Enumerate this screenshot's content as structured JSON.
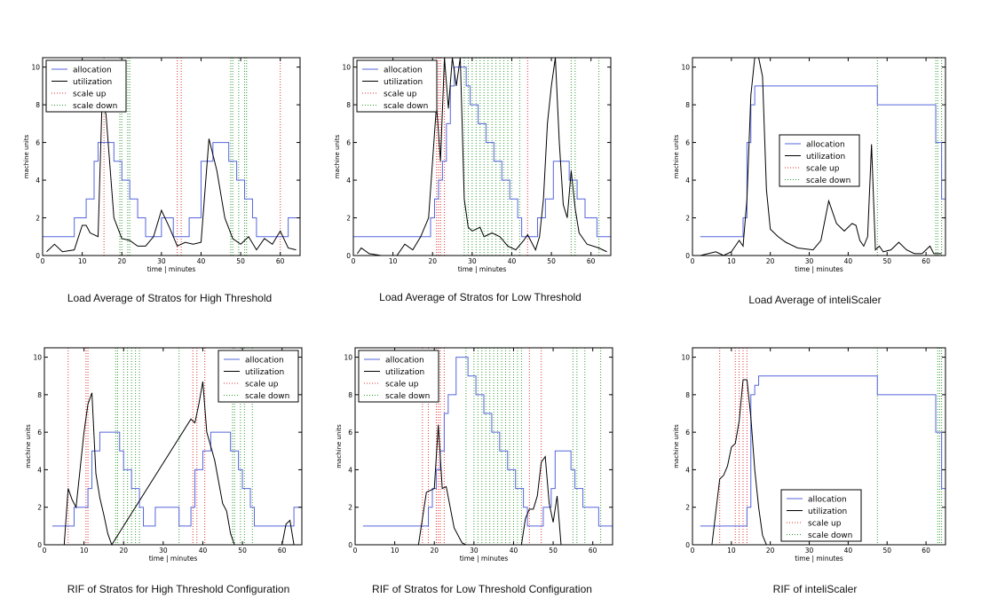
{
  "legend_labels": {
    "allocation": "allocation",
    "utilization": "utilization",
    "scale_up": "scale up",
    "scale_down": "scale down"
  },
  "colors": {
    "allocation": "#5566dd",
    "utilization": "#000000",
    "scale_up": "#e03030",
    "scale_down": "#2e9a2e",
    "frame": "#000000"
  },
  "chart_data": [
    {
      "type": "line",
      "title": "Load Average of Stratos for High Threshold",
      "xlabel": "time | minutes",
      "ylabel": "machine units",
      "xlim": [
        0,
        65
      ],
      "ylim": [
        0,
        10.5
      ],
      "xticks": [
        0,
        10,
        20,
        30,
        40,
        50,
        60
      ],
      "yticks": [
        0,
        2,
        4,
        6,
        8,
        10
      ],
      "legend_position": "top-left",
      "allocation": [
        [
          0,
          1
        ],
        [
          6,
          1
        ],
        [
          8,
          2
        ],
        [
          11,
          3
        ],
        [
          13,
          5
        ],
        [
          14,
          6
        ],
        [
          18,
          5
        ],
        [
          20,
          4
        ],
        [
          22,
          3
        ],
        [
          24,
          2
        ],
        [
          26,
          1
        ],
        [
          30,
          2
        ],
        [
          33,
          1
        ],
        [
          37,
          2
        ],
        [
          40,
          5
        ],
        [
          43,
          6
        ],
        [
          47,
          5
        ],
        [
          49,
          4
        ],
        [
          51,
          3
        ],
        [
          53,
          2
        ],
        [
          54,
          1
        ],
        [
          62,
          2
        ],
        [
          65,
          2
        ]
      ],
      "utilization": [
        [
          1,
          0.2
        ],
        [
          3,
          0.6
        ],
        [
          5,
          0.2
        ],
        [
          8,
          0.3
        ],
        [
          10,
          1.6
        ],
        [
          11,
          1.6
        ],
        [
          12,
          1.2
        ],
        [
          14,
          1.0
        ],
        [
          15,
          8.1
        ],
        [
          16,
          7.5
        ],
        [
          18,
          2.0
        ],
        [
          20,
          0.9
        ],
        [
          22,
          0.8
        ],
        [
          24,
          0.5
        ],
        [
          26,
          0.5
        ],
        [
          28,
          1.0
        ],
        [
          30,
          2.4
        ],
        [
          32,
          1.5
        ],
        [
          34,
          0.5
        ],
        [
          36,
          0.7
        ],
        [
          38,
          0.6
        ],
        [
          40,
          0.7
        ],
        [
          42,
          6.2
        ],
        [
          44,
          4.5
        ],
        [
          46,
          2.0
        ],
        [
          48,
          0.9
        ],
        [
          50,
          0.6
        ],
        [
          52,
          1.0
        ],
        [
          54,
          0.3
        ],
        [
          56,
          0.9
        ],
        [
          58,
          0.6
        ],
        [
          60,
          1.3
        ],
        [
          62,
          0.4
        ],
        [
          64,
          0.3
        ]
      ],
      "scale_up": [
        15.5,
        34,
        35,
        60
      ],
      "scale_down": [
        19.5,
        20,
        21.5,
        22,
        47.5,
        48,
        49.5,
        51,
        51.5
      ]
    },
    {
      "type": "line",
      "title": "Load Average of Stratos for Low Threshold",
      "xlabel": "time | minutes",
      "ylabel": "machine units",
      "xlim": [
        0,
        65
      ],
      "ylim": [
        0,
        10.5
      ],
      "xticks": [
        0,
        10,
        20,
        30,
        40,
        50,
        60
      ],
      "yticks": [
        0,
        2,
        4,
        6,
        8,
        10
      ],
      "legend_position": "top-left",
      "allocation": [
        [
          0,
          1
        ],
        [
          19,
          1
        ],
        [
          19.5,
          2
        ],
        [
          20.5,
          3
        ],
        [
          21.5,
          4
        ],
        [
          22.5,
          5
        ],
        [
          23.5,
          7
        ],
        [
          24.5,
          9
        ],
        [
          25.5,
          10
        ],
        [
          28.5,
          9
        ],
        [
          29.5,
          8
        ],
        [
          31.5,
          7
        ],
        [
          33.5,
          6
        ],
        [
          35.5,
          5
        ],
        [
          37.5,
          4
        ],
        [
          39.5,
          3
        ],
        [
          41.5,
          2
        ],
        [
          42.5,
          1
        ],
        [
          46.5,
          2
        ],
        [
          48.5,
          3
        ],
        [
          50.5,
          5
        ],
        [
          54.5,
          4
        ],
        [
          56.5,
          3
        ],
        [
          58.5,
          2
        ],
        [
          61.5,
          1
        ],
        [
          65,
          1
        ]
      ],
      "utilization": [
        [
          1,
          0.1
        ],
        [
          2,
          0.4
        ],
        [
          4,
          0.1
        ],
        [
          7,
          0
        ],
        [
          11,
          0
        ],
        [
          13,
          0.6
        ],
        [
          15,
          0.3
        ],
        [
          17,
          1.0
        ],
        [
          19,
          2.0
        ],
        [
          21,
          8.0
        ],
        [
          22,
          5.0
        ],
        [
          23,
          10.5
        ],
        [
          24,
          7.8
        ],
        [
          25,
          10.5
        ],
        [
          26,
          9.0
        ],
        [
          27,
          10.5
        ],
        [
          28,
          3.0
        ],
        [
          29,
          1.5
        ],
        [
          30,
          1.3
        ],
        [
          32,
          1.5
        ],
        [
          33,
          1.0
        ],
        [
          35,
          1.2
        ],
        [
          37,
          1.0
        ],
        [
          39,
          0.5
        ],
        [
          41,
          0.3
        ],
        [
          43,
          0.8
        ],
        [
          44,
          1.1
        ],
        [
          45,
          0.7
        ],
        [
          46,
          0.3
        ],
        [
          47,
          1.0
        ],
        [
          48,
          3.0
        ],
        [
          49,
          7.0
        ],
        [
          50,
          9.0
        ],
        [
          51,
          10.5
        ],
        [
          52,
          6.0
        ],
        [
          53,
          2.7
        ],
        [
          54,
          2.0
        ],
        [
          55,
          4.5
        ],
        [
          56,
          2.5
        ],
        [
          57,
          1.2
        ],
        [
          59,
          0.6
        ],
        [
          62,
          0.4
        ],
        [
          64,
          0.2
        ]
      ],
      "scale_up": [
        21,
        21.5,
        22,
        23,
        44
      ],
      "scale_down": [
        28,
        29,
        30,
        31,
        32,
        33,
        34,
        35,
        36,
        37,
        38,
        39,
        40,
        42,
        55,
        56,
        62
      ]
    },
    {
      "type": "line",
      "title": "Load Average of inteliScaler",
      "xlabel": "time | minutes",
      "ylabel": "machine units",
      "xlim": [
        0,
        65
      ],
      "ylim": [
        0,
        10.5
      ],
      "xticks": [
        0,
        10,
        20,
        30,
        40,
        50,
        60
      ],
      "yticks": [
        0,
        2,
        4,
        6,
        8,
        10
      ],
      "legend_position": "center",
      "allocation": [
        [
          2,
          1
        ],
        [
          12,
          1
        ],
        [
          13,
          2
        ],
        [
          14,
          6
        ],
        [
          15,
          8
        ],
        [
          16,
          9
        ],
        [
          47,
          9
        ],
        [
          47.5,
          8
        ],
        [
          62,
          8
        ],
        [
          62.5,
          6
        ],
        [
          64,
          3
        ],
        [
          65,
          3
        ]
      ],
      "utilization": [
        [
          2,
          0
        ],
        [
          6,
          0.2
        ],
        [
          8,
          0
        ],
        [
          10,
          0.2
        ],
        [
          12,
          0.8
        ],
        [
          13,
          0.5
        ],
        [
          14,
          3.0
        ],
        [
          15,
          8.5
        ],
        [
          16,
          10.5
        ],
        [
          17,
          10.5
        ],
        [
          18,
          9.5
        ],
        [
          19,
          3.5
        ],
        [
          20,
          1.4
        ],
        [
          22,
          1.0
        ],
        [
          24,
          0.7
        ],
        [
          27,
          0.4
        ],
        [
          31,
          0.3
        ],
        [
          33,
          0.8
        ],
        [
          35,
          2.9
        ],
        [
          37,
          1.7
        ],
        [
          39,
          1.3
        ],
        [
          41,
          1.7
        ],
        [
          42,
          1.6
        ],
        [
          43,
          0.8
        ],
        [
          44,
          0.5
        ],
        [
          45,
          1.0
        ],
        [
          46,
          5.9
        ],
        [
          47,
          0.3
        ],
        [
          48,
          0.5
        ],
        [
          49,
          0.2
        ],
        [
          51,
          0.3
        ],
        [
          53,
          0.7
        ],
        [
          55,
          0.3
        ],
        [
          57,
          0.1
        ],
        [
          59,
          0.1
        ],
        [
          61,
          0.5
        ],
        [
          62,
          0.1
        ],
        [
          64,
          0.1
        ]
      ],
      "scale_up": [],
      "scale_down": [
        47.5,
        62.5,
        63,
        64
      ]
    },
    {
      "type": "line",
      "title": "RIF of Stratos for High Threshold Configuration",
      "xlabel": "time | minutes",
      "ylabel": "machine units",
      "xlim": [
        0,
        65
      ],
      "ylim": [
        0,
        10.5
      ],
      "xticks": [
        0,
        10,
        20,
        30,
        40,
        50,
        60
      ],
      "yticks": [
        0,
        2,
        4,
        6,
        8,
        10
      ],
      "legend_position": "top-right",
      "allocation": [
        [
          2,
          1
        ],
        [
          7,
          1
        ],
        [
          7.5,
          2
        ],
        [
          11,
          3
        ],
        [
          12,
          5
        ],
        [
          14,
          6
        ],
        [
          19,
          5
        ],
        [
          20,
          4
        ],
        [
          22,
          3
        ],
        [
          24,
          2
        ],
        [
          25,
          1
        ],
        [
          28,
          2
        ],
        [
          34,
          1
        ],
        [
          37,
          2
        ],
        [
          38,
          4
        ],
        [
          40,
          5
        ],
        [
          42,
          6
        ],
        [
          47,
          5
        ],
        [
          49,
          4
        ],
        [
          50,
          3
        ],
        [
          52,
          2
        ],
        [
          53,
          1
        ],
        [
          63,
          2
        ],
        [
          65,
          2
        ]
      ],
      "utilization": [
        [
          5,
          0
        ],
        [
          6,
          3.0
        ],
        [
          7,
          2.4
        ],
        [
          8,
          2.0
        ],
        [
          10,
          6.0
        ],
        [
          11,
          7.5
        ],
        [
          12,
          8.1
        ],
        [
          13,
          3.8
        ],
        [
          14,
          2.5
        ],
        [
          15,
          1.6
        ],
        [
          16,
          0.6
        ],
        [
          17,
          0
        ],
        [
          37,
          6.7
        ],
        [
          38,
          6.5
        ],
        [
          39,
          7.5
        ],
        [
          40,
          8.7
        ],
        [
          41,
          6.0
        ],
        [
          43,
          4.5
        ],
        [
          45,
          2.2
        ],
        [
          46,
          1.8
        ],
        [
          47,
          0.6
        ],
        [
          48,
          0
        ],
        [
          60,
          0
        ],
        [
          61,
          1.1
        ],
        [
          62,
          1.3
        ],
        [
          63,
          0
        ]
      ],
      "scale_up": [
        6,
        10.5,
        11,
        37.5,
        38.5,
        40.5
      ],
      "scale_down": [
        18,
        18.5,
        20,
        21,
        22,
        23,
        24,
        34,
        47.5,
        48,
        49.5,
        50.5,
        52.5
      ]
    },
    {
      "type": "line",
      "title": "RIF of Stratos for Low Threshold Configuration",
      "xlabel": "time | minutes",
      "ylabel": "machine units",
      "xlim": [
        0,
        65
      ],
      "ylim": [
        0,
        10.5
      ],
      "xticks": [
        0,
        10,
        20,
        30,
        40,
        50,
        60
      ],
      "yticks": [
        0,
        2,
        4,
        6,
        8,
        10
      ],
      "legend_position": "top-left",
      "allocation": [
        [
          2,
          1
        ],
        [
          18,
          1
        ],
        [
          18.5,
          2
        ],
        [
          19.5,
          3
        ],
        [
          20.5,
          4
        ],
        [
          21.5,
          5
        ],
        [
          22.5,
          7
        ],
        [
          23.5,
          8
        ],
        [
          25.5,
          10
        ],
        [
          28.5,
          9
        ],
        [
          30.5,
          8
        ],
        [
          32.5,
          7
        ],
        [
          34.5,
          6
        ],
        [
          36.5,
          5
        ],
        [
          38.5,
          4
        ],
        [
          40.5,
          3
        ],
        [
          42.5,
          2
        ],
        [
          43.5,
          1
        ],
        [
          47.5,
          2
        ],
        [
          49.5,
          3
        ],
        [
          50.5,
          5
        ],
        [
          54.5,
          4
        ],
        [
          55.5,
          3
        ],
        [
          57.5,
          2
        ],
        [
          61.5,
          1
        ],
        [
          65,
          1
        ]
      ],
      "utilization": [
        [
          16,
          0
        ],
        [
          18,
          2.8
        ],
        [
          20,
          3.0
        ],
        [
          21,
          6.4
        ],
        [
          22,
          3.0
        ],
        [
          23,
          3.1
        ],
        [
          24,
          2.0
        ],
        [
          25,
          0.9
        ],
        [
          27,
          0.1
        ],
        [
          28,
          0
        ],
        [
          42,
          0
        ],
        [
          43,
          1.4
        ],
        [
          44,
          1.9
        ],
        [
          45,
          1.9
        ],
        [
          46,
          2.6
        ],
        [
          47,
          4.4
        ],
        [
          48,
          4.7
        ],
        [
          49,
          2.2
        ],
        [
          50,
          1.2
        ],
        [
          51,
          2.6
        ],
        [
          52,
          0
        ],
        [
          53,
          0
        ]
      ],
      "scale_up": [
        17,
        18.5,
        20.5,
        21,
        21.5,
        22.5,
        44,
        47
      ],
      "scale_down": [
        28,
        30,
        31,
        32,
        33,
        34,
        35,
        36,
        37,
        38,
        39,
        40,
        41,
        42,
        55,
        56,
        58,
        62
      ]
    },
    {
      "type": "line",
      "title": "RIF of inteliScaler",
      "xlabel": "time | minutes",
      "ylabel": "machine units",
      "xlim": [
        0,
        65
      ],
      "ylim": [
        0,
        10.5
      ],
      "xticks": [
        0,
        10,
        20,
        30,
        40,
        50,
        60
      ],
      "yticks": [
        0,
        2,
        4,
        6,
        8,
        10
      ],
      "legend_position": "bottom-center",
      "allocation": [
        [
          2,
          1
        ],
        [
          13,
          1
        ],
        [
          14,
          2
        ],
        [
          15,
          8
        ],
        [
          16,
          8.5
        ],
        [
          17,
          9
        ],
        [
          47,
          9
        ],
        [
          47.5,
          8
        ],
        [
          62,
          8
        ],
        [
          62.5,
          6
        ],
        [
          64,
          3
        ],
        [
          65,
          3
        ]
      ],
      "utilization": [
        [
          5,
          0
        ],
        [
          7,
          3.5
        ],
        [
          8,
          3.7
        ],
        [
          9,
          4.2
        ],
        [
          10,
          5.2
        ],
        [
          11,
          5.4
        ],
        [
          12,
          6.6
        ],
        [
          13,
          8.8
        ],
        [
          14,
          8.8
        ],
        [
          15,
          6.8
        ],
        [
          16,
          4.0
        ],
        [
          17,
          2.0
        ],
        [
          18,
          0.5
        ],
        [
          19,
          0
        ]
      ],
      "scale_up": [
        7,
        11,
        12,
        13,
        14
      ],
      "scale_down": [
        47.5,
        63,
        63.5,
        64
      ]
    }
  ]
}
